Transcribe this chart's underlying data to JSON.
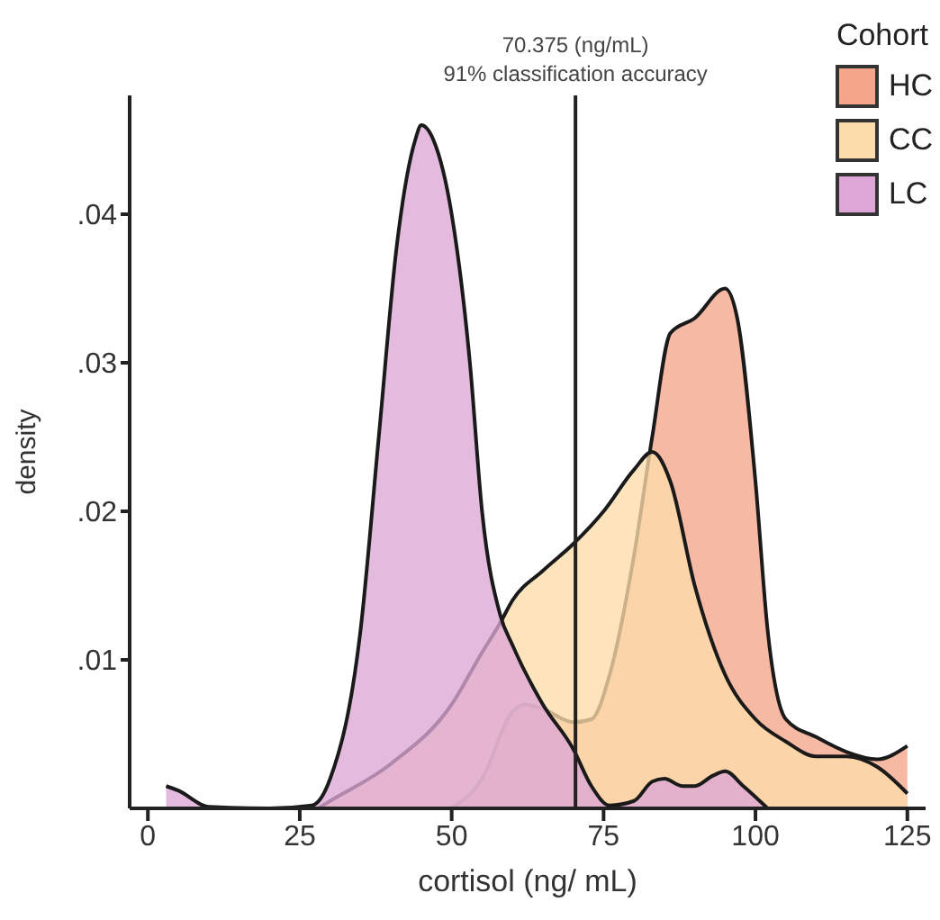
{
  "chart_data": {
    "type": "area",
    "xlabel": "cortisol (ng/ mL)",
    "ylabel": "density",
    "legend_title": "Cohort",
    "legend": "top right",
    "grid": false,
    "xlim": [
      -3,
      128
    ],
    "xticks": [
      0,
      25,
      50,
      75,
      100,
      125
    ],
    "ylim": [
      0,
      0.048
    ],
    "yticks": [
      {
        "value": 0.01,
        "label": ".01"
      },
      {
        "value": 0.02,
        "label": ".02"
      },
      {
        "value": 0.03,
        "label": ".03"
      },
      {
        "value": 0.04,
        "label": ".04"
      }
    ],
    "ref_lines": [
      {
        "axis": "x",
        "value": 70.375,
        "label": "70.375 (ng/mL)\n91% classification accuracy",
        "color": "#222222"
      }
    ],
    "series": [
      {
        "name": "HC",
        "color": "#f4a58a",
        "x": [
          50,
          55,
          60,
          62,
          65,
          70,
          73,
          76,
          80,
          83,
          86,
          90,
          95,
          97,
          100,
          102,
          105,
          110,
          115,
          120,
          125
        ],
        "values": [
          0,
          0.002,
          0.0065,
          0.007,
          0.0067,
          0.0058,
          0.006,
          0.009,
          0.017,
          0.025,
          0.032,
          0.033,
          0.035,
          0.033,
          0.022,
          0.012,
          0.006,
          0.0048,
          0.0038,
          0.0033,
          0.0042
        ]
      },
      {
        "name": "CC",
        "color": "#fcdcaa",
        "x": [
          28,
          30,
          40,
          50,
          55,
          58,
          60,
          65,
          70,
          75,
          80,
          83,
          86,
          90,
          95,
          100,
          105,
          110,
          115,
          120,
          125
        ],
        "values": [
          0,
          0.0005,
          0.003,
          0.007,
          0.0105,
          0.0125,
          0.014,
          0.016,
          0.0178,
          0.02,
          0.0228,
          0.024,
          0.022,
          0.015,
          0.009,
          0.006,
          0.0045,
          0.0035,
          0.0035,
          0.0028,
          0.001
        ]
      },
      {
        "name": "LC",
        "color": "#dda6d6",
        "x": [
          3,
          5,
          10,
          20,
          27,
          30,
          35,
          38,
          41,
          44,
          45,
          47,
          50,
          53,
          55,
          58,
          60,
          65,
          70,
          73,
          76,
          80,
          83,
          85,
          88,
          90,
          93,
          95,
          98,
          102
        ],
        "values": [
          0.0015,
          0.0012,
          0.0001,
          0,
          0.0002,
          0.002,
          0.012,
          0.025,
          0.038,
          0.045,
          0.046,
          0.045,
          0.04,
          0.03,
          0.02,
          0.013,
          0.011,
          0.007,
          0.004,
          0.0015,
          0.0002,
          0.0005,
          0.0018,
          0.002,
          0.0015,
          0.0015,
          0.0022,
          0.0025,
          0.0015,
          0
        ]
      }
    ]
  }
}
